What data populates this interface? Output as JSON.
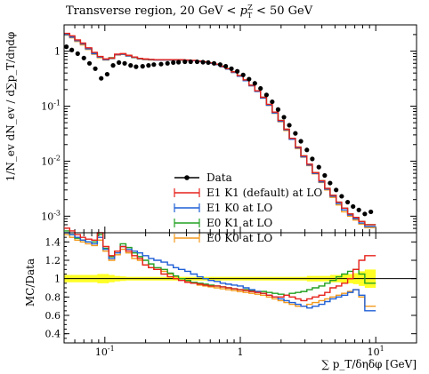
{
  "title": "Transverse region, 20 GeV < p_T^Z < 50 GeV",
  "ylabel_main": "1/N_ev dN_ev / d∑p_T/dηdφ",
  "ylabel_ratio": "MC/Data",
  "xlabel": "∑ p_T/δηδφ [GeV]",
  "legend": [
    {
      "label": "Data",
      "color": "#000000"
    },
    {
      "label": "E1 K1 (default) at LO",
      "color": "#e6211a"
    },
    {
      "label": "E1 K0 at LO",
      "color": "#1f5fd6"
    },
    {
      "label": "E0 K1 at LO",
      "color": "#22a022"
    },
    {
      "label": "E0 K0 at LO",
      "color": "#f39a1c"
    }
  ],
  "colors": {
    "band": "#ffff00"
  },
  "x_ticks": [
    "10^{-1}",
    "1",
    "10^{1}"
  ],
  "y_ticks_main": [
    "10^{-3}",
    "10^{-2}",
    "10^{-1}",
    "1"
  ],
  "y_ticks_ratio": [
    "0.4",
    "0.6",
    "0.8",
    "1",
    "1.2",
    "1.4"
  ],
  "chart_data": [
    {
      "type": "line",
      "xscale": "log",
      "yscale": "log",
      "xlim": [
        0.05,
        20
      ],
      "ylim": [
        0.0005,
        3
      ],
      "data": {
        "x": [
          0.052,
          0.057,
          0.063,
          0.07,
          0.077,
          0.085,
          0.094,
          0.104,
          0.115,
          0.127,
          0.14,
          0.155,
          0.17,
          0.19,
          0.21,
          0.23,
          0.26,
          0.29,
          0.32,
          0.35,
          0.39,
          0.43,
          0.48,
          0.53,
          0.58,
          0.64,
          0.71,
          0.78,
          0.86,
          0.95,
          1.05,
          1.16,
          1.28,
          1.41,
          1.56,
          1.72,
          1.9,
          2.1,
          2.3,
          2.55,
          2.8,
          3.1,
          3.4,
          3.8,
          4.2,
          4.6,
          5.1,
          5.6,
          6.2,
          6.8,
          7.5,
          8.3,
          9.2
        ],
        "y": [
          1.2,
          1.05,
          0.9,
          0.75,
          0.6,
          0.48,
          0.32,
          0.38,
          0.55,
          0.62,
          0.6,
          0.55,
          0.52,
          0.53,
          0.55,
          0.57,
          0.58,
          0.6,
          0.62,
          0.63,
          0.64,
          0.64,
          0.64,
          0.63,
          0.62,
          0.6,
          0.57,
          0.53,
          0.48,
          0.43,
          0.37,
          0.31,
          0.26,
          0.21,
          0.16,
          0.12,
          0.087,
          0.063,
          0.045,
          0.032,
          0.023,
          0.016,
          0.011,
          0.0078,
          0.0055,
          0.004,
          0.003,
          0.0023,
          0.0018,
          0.0015,
          0.0013,
          0.0011,
          0.0012
        ]
      },
      "mc": {
        "x_edges": [
          0.05,
          0.055,
          0.06,
          0.066,
          0.072,
          0.08,
          0.088,
          0.097,
          0.107,
          0.118,
          0.13,
          0.143,
          0.158,
          0.174,
          0.19,
          0.21,
          0.23,
          0.26,
          0.29,
          0.32,
          0.35,
          0.39,
          0.43,
          0.48,
          0.53,
          0.58,
          0.64,
          0.71,
          0.78,
          0.86,
          0.95,
          1.05,
          1.16,
          1.28,
          1.41,
          1.56,
          1.72,
          1.9,
          2.1,
          2.3,
          2.55,
          2.8,
          3.1,
          3.4,
          3.8,
          4.2,
          4.6,
          5.1,
          5.6,
          6.2,
          6.8,
          7.5,
          8.3,
          9.2,
          10.0
        ],
        "series": [
          {
            "name": "E1 K1 (default) at LO",
            "values": [
              2.1,
              1.9,
              1.6,
              1.4,
              1.15,
              0.95,
              0.8,
              0.72,
              0.75,
              0.88,
              0.9,
              0.84,
              0.78,
              0.74,
              0.72,
              0.71,
              0.7,
              0.7,
              0.7,
              0.7,
              0.7,
              0.69,
              0.68,
              0.66,
              0.64,
              0.61,
              0.58,
              0.53,
              0.48,
              0.42,
              0.36,
              0.3,
              0.24,
              0.19,
              0.145,
              0.108,
              0.078,
              0.055,
              0.038,
              0.026,
              0.018,
              0.0125,
              0.0088,
              0.0062,
              0.0044,
              0.0032,
              0.0024,
              0.0018,
              0.0014,
              0.0011,
              0.00095,
              0.0008,
              0.0007
            ]
          },
          {
            "name": "E1 K0 at LO",
            "values": [
              2.0,
              1.8,
              1.55,
              1.35,
              1.1,
              0.9,
              0.78,
              0.7,
              0.74,
              0.86,
              0.88,
              0.82,
              0.77,
              0.73,
              0.71,
              0.7,
              0.69,
              0.69,
              0.69,
              0.69,
              0.69,
              0.68,
              0.67,
              0.65,
              0.63,
              0.6,
              0.57,
              0.52,
              0.47,
              0.41,
              0.35,
              0.29,
              0.235,
              0.185,
              0.14,
              0.104,
              0.075,
              0.053,
              0.037,
              0.025,
              0.0175,
              0.012,
              0.0085,
              0.006,
              0.0042,
              0.0031,
              0.0023,
              0.0017,
              0.0013,
              0.00105,
              0.0009,
              0.00075,
              0.00065
            ]
          },
          {
            "name": "E0 K1 at LO",
            "values": [
              2.05,
              1.85,
              1.58,
              1.38,
              1.12,
              0.92,
              0.79,
              0.71,
              0.76,
              0.87,
              0.89,
              0.83,
              0.77,
              0.73,
              0.71,
              0.7,
              0.7,
              0.7,
              0.69,
              0.69,
              0.69,
              0.68,
              0.67,
              0.66,
              0.64,
              0.61,
              0.58,
              0.53,
              0.48,
              0.42,
              0.36,
              0.3,
              0.24,
              0.19,
              0.145,
              0.107,
              0.077,
              0.055,
              0.038,
              0.026,
              0.018,
              0.0125,
              0.0088,
              0.0062,
              0.0044,
              0.0032,
              0.0024,
              0.0018,
              0.0014,
              0.0011,
              0.00095,
              0.0008,
              0.0007
            ]
          },
          {
            "name": "E0 K0 at LO",
            "values": [
              1.95,
              1.75,
              1.5,
              1.3,
              1.07,
              0.88,
              0.76,
              0.69,
              0.73,
              0.85,
              0.87,
              0.81,
              0.76,
              0.72,
              0.7,
              0.69,
              0.69,
              0.69,
              0.69,
              0.69,
              0.68,
              0.68,
              0.67,
              0.65,
              0.63,
              0.6,
              0.57,
              0.52,
              0.47,
              0.41,
              0.35,
              0.29,
              0.235,
              0.185,
              0.14,
              0.103,
              0.074,
              0.052,
              0.036,
              0.025,
              0.017,
              0.0118,
              0.0083,
              0.0059,
              0.0041,
              0.003,
              0.0022,
              0.0016,
              0.0012,
              0.001,
              0.00085,
              0.00072,
              0.00062
            ]
          }
        ]
      }
    },
    {
      "type": "line",
      "xscale": "log",
      "xlim": [
        0.05,
        20
      ],
      "ylim": [
        0.3,
        1.5
      ],
      "band_halfwidth": [
        0.04,
        0.04,
        0.04,
        0.04,
        0.04,
        0.04,
        0.05,
        0.05,
        0.04,
        0.03,
        0.025,
        0.02,
        0.02,
        0.02,
        0.02,
        0.02,
        0.02,
        0.02,
        0.02,
        0.02,
        0.02,
        0.02,
        0.02,
        0.02,
        0.02,
        0.02,
        0.02,
        0.02,
        0.02,
        0.02,
        0.02,
        0.02,
        0.02,
        0.02,
        0.02,
        0.02,
        0.02,
        0.02,
        0.02,
        0.02,
        0.02,
        0.02,
        0.03,
        0.03,
        0.03,
        0.03,
        0.04,
        0.04,
        0.05,
        0.05,
        0.06,
        0.08,
        0.1
      ],
      "series": [
        {
          "name": "E1 K1 (default) at LO",
          "values": [
            1.55,
            1.52,
            1.48,
            1.45,
            1.43,
            1.42,
            1.5,
            1.35,
            1.25,
            1.3,
            1.35,
            1.3,
            1.25,
            1.22,
            1.15,
            1.12,
            1.1,
            1.05,
            1.02,
            1.0,
            0.98,
            0.96,
            0.95,
            0.94,
            0.93,
            0.92,
            0.92,
            0.91,
            0.9,
            0.89,
            0.88,
            0.87,
            0.86,
            0.85,
            0.84,
            0.82,
            0.8,
            0.8,
            0.82,
            0.8,
            0.78,
            0.76,
            0.78,
            0.8,
            0.82,
            0.85,
            0.9,
            0.92,
            0.95,
            1.0,
            1.1,
            1.2,
            1.25
          ]
        },
        {
          "name": "E1 K0 at LO",
          "values": [
            1.5,
            1.48,
            1.45,
            1.42,
            1.4,
            1.38,
            1.45,
            1.32,
            1.22,
            1.28,
            1.35,
            1.32,
            1.3,
            1.28,
            1.25,
            1.22,
            1.2,
            1.18,
            1.15,
            1.12,
            1.1,
            1.08,
            1.05,
            1.02,
            1.0,
            0.98,
            0.97,
            0.95,
            0.94,
            0.93,
            0.92,
            0.9,
            0.88,
            0.86,
            0.84,
            0.82,
            0.8,
            0.78,
            0.76,
            0.74,
            0.72,
            0.7,
            0.68,
            0.7,
            0.72,
            0.75,
            0.78,
            0.8,
            0.82,
            0.85,
            0.88,
            0.82,
            0.65
          ]
        },
        {
          "name": "E0 K1 at LO",
          "values": [
            1.52,
            1.48,
            1.44,
            1.42,
            1.4,
            1.4,
            1.48,
            1.33,
            1.24,
            1.3,
            1.38,
            1.34,
            1.28,
            1.24,
            1.2,
            1.16,
            1.12,
            1.1,
            1.06,
            1.03,
            1.0,
            0.98,
            0.96,
            0.95,
            0.94,
            0.93,
            0.92,
            0.91,
            0.9,
            0.89,
            0.88,
            0.88,
            0.87,
            0.86,
            0.86,
            0.85,
            0.84,
            0.83,
            0.82,
            0.84,
            0.85,
            0.86,
            0.88,
            0.9,
            0.92,
            0.95,
            0.98,
            1.02,
            1.05,
            1.08,
            1.1,
            1.05,
            0.95
          ]
        },
        {
          "name": "E0 K0 at LO",
          "values": [
            1.48,
            1.45,
            1.42,
            1.4,
            1.38,
            1.36,
            1.42,
            1.3,
            1.2,
            1.26,
            1.32,
            1.28,
            1.22,
            1.2,
            1.15,
            1.12,
            1.1,
            1.08,
            1.05,
            1.02,
            1.0,
            0.97,
            0.95,
            0.93,
            0.92,
            0.91,
            0.9,
            0.89,
            0.88,
            0.87,
            0.86,
            0.85,
            0.84,
            0.83,
            0.82,
            0.8,
            0.78,
            0.76,
            0.74,
            0.72,
            0.7,
            0.7,
            0.72,
            0.74,
            0.76,
            0.78,
            0.8,
            0.82,
            0.84,
            0.86,
            0.88,
            0.8,
            0.7
          ]
        }
      ]
    }
  ]
}
